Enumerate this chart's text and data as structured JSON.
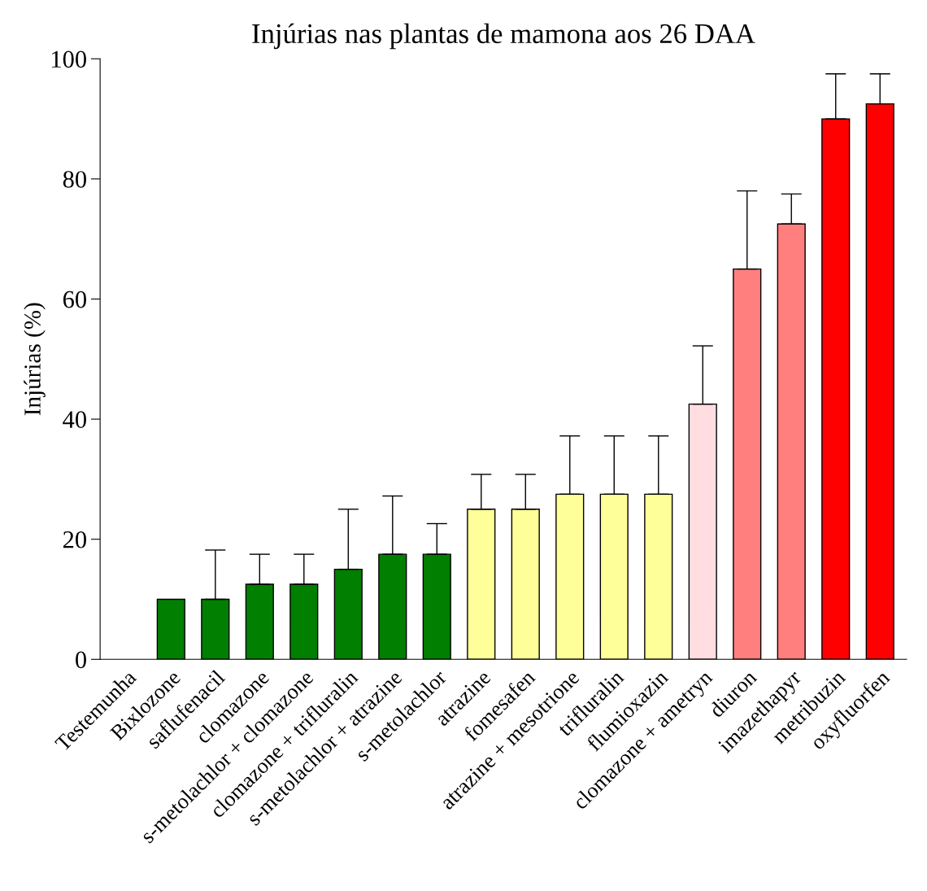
{
  "chart_data": {
    "type": "bar",
    "title": "Injúrias nas plantas de mamona aos 26 DAA",
    "ylabel": "Injúrias (%)",
    "categories": [
      "Testemunha",
      "Bixlozone",
      "saflufenacil",
      "clomazone",
      "s-metolachlor + clomazone",
      "clomazone + trifluralin",
      "s-metolachlor + atrazine",
      "s-metolachlor",
      "atrazine",
      "fomesafen",
      "atrazine + mesotrione",
      "trifluralin",
      "flumioxazin",
      "clomazone + ametryn",
      "diuron",
      "imazethapyr",
      "metribuzin",
      "oxyfluorfen"
    ],
    "values": [
      0,
      10,
      10,
      12.5,
      12.5,
      15,
      17.5,
      17.5,
      25,
      25,
      27.5,
      27.5,
      27.5,
      42.5,
      65,
      72.5,
      90,
      92.5
    ],
    "errors": [
      null,
      null,
      [
        10,
        18.2
      ],
      [
        12.5,
        17.5
      ],
      [
        12.5,
        17.5
      ],
      [
        15,
        25
      ],
      [
        17.5,
        27.2
      ],
      [
        17.5,
        22.6
      ],
      [
        25,
        30.8
      ],
      [
        25,
        30.8
      ],
      [
        27.5,
        37.2
      ],
      [
        27.5,
        37.2
      ],
      [
        27.5,
        37.2
      ],
      [
        42.5,
        52.2
      ],
      [
        65,
        78
      ],
      [
        72.5,
        77.5
      ],
      [
        90,
        97.5
      ],
      [
        92.5,
        97.5
      ]
    ],
    "colors": [
      "#007f00",
      "#007f00",
      "#007f00",
      "#007f00",
      "#007f00",
      "#007f00",
      "#007f00",
      "#007f00",
      "#ffff99",
      "#ffff99",
      "#ffff99",
      "#ffff99",
      "#ffff99",
      "#ffdde0",
      "#ff7f7f",
      "#ff7f7f",
      "#ff0000",
      "#ff0000"
    ],
    "ylim": [
      0,
      100
    ],
    "yticks": [
      0,
      20,
      40,
      60,
      80,
      100
    ],
    "grid": false,
    "legend": false
  }
}
